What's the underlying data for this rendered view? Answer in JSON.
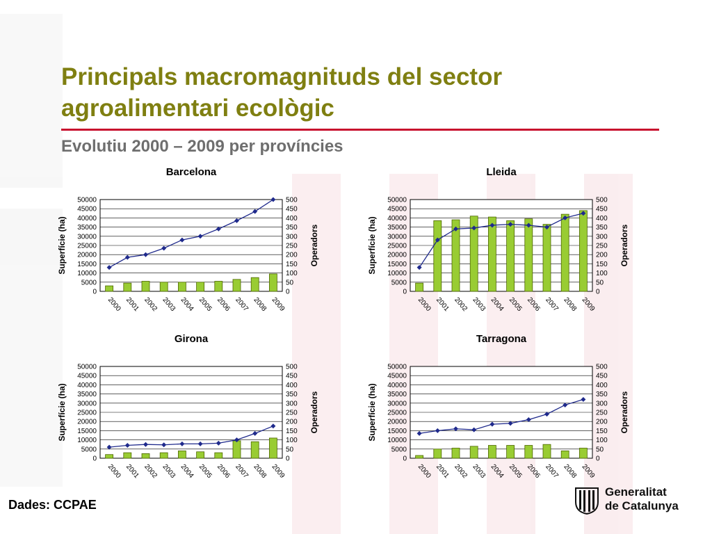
{
  "slide": {
    "title": "Principals macromagnituds del sector agroalimentari ecològic",
    "subtitle": "Evolutiu 2000 – 2009 per províncies",
    "source": "Dades: CCPAE",
    "logo_line1": "Generalitat",
    "logo_line2": "de Catalunya"
  },
  "colors": {
    "title": "#7f7f11",
    "rule": "#c8102e",
    "bar_fill": "#99cc33",
    "bar_stroke": "#4d6600",
    "line": "#1f2a8c",
    "watermark": "#c8102e"
  },
  "chart_data": [
    {
      "type": "bar",
      "title": "Barcelona",
      "categories": [
        "2000",
        "2001",
        "2002",
        "2003",
        "2004",
        "2005",
        "2006",
        "2007",
        "2008",
        "2009"
      ],
      "ylabel": "Superfície (ha)",
      "y2label": "Operadors",
      "ylim": [
        0,
        50000
      ],
      "yticks": [
        "0",
        "5000",
        "10000",
        "15000",
        "20000",
        "25000",
        "30000",
        "35000",
        "40000",
        "45000",
        "50000"
      ],
      "y2lim": [
        0,
        500
      ],
      "y2ticks": [
        "0",
        "50",
        "100",
        "150",
        "200",
        "250",
        "300",
        "350",
        "400",
        "450",
        "500"
      ],
      "grid": true,
      "series": [
        {
          "kind": "bar",
          "axis": "left",
          "values": [
            3000,
            4500,
            5500,
            5000,
            5000,
            5000,
            5500,
            6500,
            7500,
            9500
          ]
        },
        {
          "kind": "line",
          "axis": "right",
          "values": [
            130,
            185,
            200,
            235,
            280,
            300,
            340,
            385,
            435,
            500
          ]
        }
      ]
    },
    {
      "type": "bar",
      "title": "Lleida",
      "categories": [
        "2000",
        "2001",
        "2002",
        "2003",
        "2004",
        "2005",
        "2006",
        "2007",
        "2008",
        "2009"
      ],
      "ylabel": "Superfície (ha)",
      "y2label": "Operadors",
      "ylim": [
        0,
        50000
      ],
      "yticks": [
        "0",
        "5000",
        "10000",
        "15000",
        "20000",
        "25000",
        "30000",
        "35000",
        "40000",
        "45000",
        "50000"
      ],
      "y2lim": [
        0,
        500
      ],
      "y2ticks": [
        "0",
        "50",
        "100",
        "150",
        "200",
        "250",
        "300",
        "350",
        "400",
        "450",
        "500"
      ],
      "grid": true,
      "series": [
        {
          "kind": "bar",
          "axis": "left",
          "values": [
            4500,
            38500,
            39000,
            41000,
            40500,
            38500,
            39500,
            36500,
            42000,
            44000
          ]
        },
        {
          "kind": "line",
          "axis": "right",
          "values": [
            130,
            280,
            340,
            345,
            360,
            365,
            360,
            350,
            400,
            425
          ]
        }
      ]
    },
    {
      "type": "bar",
      "title": "Girona",
      "categories": [
        "2000",
        "2001",
        "2002",
        "2003",
        "2004",
        "2005",
        "2006",
        "2007",
        "2008",
        "2009"
      ],
      "ylabel": "Superfície (ha)",
      "y2label": "Operadors",
      "ylim": [
        0,
        50000
      ],
      "yticks": [
        "0",
        "5000",
        "10000",
        "15000",
        "20000",
        "25000",
        "30000",
        "35000",
        "40000",
        "45000",
        "50000"
      ],
      "y2lim": [
        0,
        500
      ],
      "y2ticks": [
        "0",
        "50",
        "100",
        "150",
        "200",
        "250",
        "300",
        "350",
        "400",
        "450",
        "500"
      ],
      "grid": true,
      "series": [
        {
          "kind": "bar",
          "axis": "left",
          "values": [
            2000,
            3000,
            2500,
            3000,
            4000,
            3500,
            3000,
            9500,
            9000,
            11000
          ]
        },
        {
          "kind": "line",
          "axis": "right",
          "values": [
            60,
            70,
            75,
            73,
            78,
            78,
            82,
            100,
            135,
            175
          ]
        }
      ]
    },
    {
      "type": "bar",
      "title": "Tarragona",
      "categories": [
        "2000",
        "2001",
        "2002",
        "2003",
        "2004",
        "2005",
        "2006",
        "2007",
        "2008",
        "2009"
      ],
      "ylabel": "Superfície (ha)",
      "y2label": "Operadors",
      "ylim": [
        0,
        50000
      ],
      "yticks": [
        "0",
        "5000",
        "10000",
        "15000",
        "20000",
        "25000",
        "30000",
        "35000",
        "40000",
        "45000",
        "50000"
      ],
      "y2lim": [
        0,
        500
      ],
      "y2ticks": [
        "0",
        "50",
        "100",
        "150",
        "200",
        "250",
        "300",
        "350",
        "400",
        "450",
        "500"
      ],
      "grid": true,
      "series": [
        {
          "kind": "bar",
          "axis": "left",
          "values": [
            1500,
            5000,
            5500,
            6500,
            7000,
            7000,
            7000,
            7500,
            4000,
            5500
          ]
        },
        {
          "kind": "line",
          "axis": "right",
          "values": [
            135,
            150,
            160,
            155,
            185,
            190,
            210,
            240,
            290,
            320
          ]
        }
      ]
    }
  ]
}
